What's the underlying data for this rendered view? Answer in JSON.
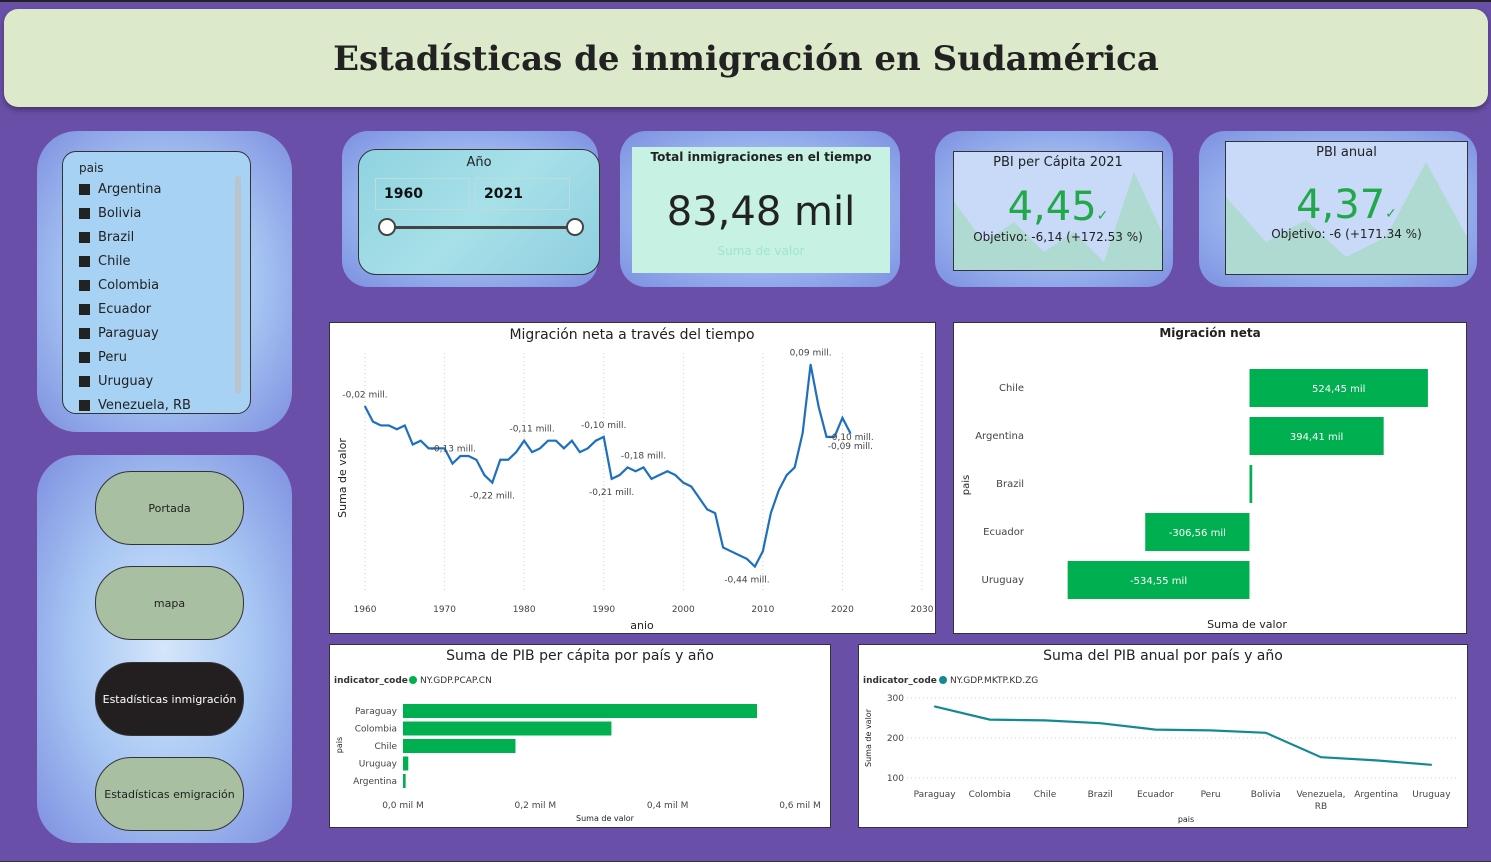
{
  "header": {
    "title": "Estadísticas de inmigración en Sudamérica"
  },
  "slicer": {
    "title": "pais",
    "items": [
      "Argentina",
      "Bolivia",
      "Brazil",
      "Chile",
      "Colombia",
      "Ecuador",
      "Paraguay",
      "Peru",
      "Uruguay",
      "Venezuela, RB"
    ]
  },
  "nav": {
    "portada": "Portada",
    "mapa": "mapa",
    "inmigracion": "Estadísticas inmigración",
    "emigracion": "Estadísticas emigración"
  },
  "year_slicer": {
    "label": "Año",
    "from": "1960",
    "to": "2021"
  },
  "kpi_total": {
    "title": "Total inmigraciones en el tiempo",
    "value": "83,48 mil",
    "subtitle": "Suma de valor"
  },
  "kpi_pbi_capita": {
    "title": "PBI per Cápita 2021",
    "value": "4,45",
    "target": "Objetivo: -6,14 (+172.53 %)"
  },
  "kpi_pbi_anual": {
    "title": "PBI anual",
    "value": "4,37",
    "target": "Objetivo: -6 (+171.34 %)"
  },
  "colors": {
    "accent_green": "#00b050",
    "line_blue": "#1f6fbf",
    "teal": "#138a93",
    "background": "#6a4fa8"
  },
  "chart_data": [
    {
      "id": "net_migration_time",
      "type": "line",
      "title": "Migración neta a través del tiempo",
      "xlabel": "anio",
      "ylabel": "Suma de valor",
      "xlim": [
        1960,
        2030
      ],
      "xticks": [
        "1960",
        "1970",
        "1980",
        "1990",
        "2000",
        "2010",
        "2020",
        "2030"
      ],
      "ylim": [
        -0.47,
        0.12
      ],
      "unit": "mill.",
      "x": [
        1960,
        1961,
        1962,
        1963,
        1964,
        1965,
        1966,
        1967,
        1968,
        1969,
        1970,
        1971,
        1972,
        1973,
        1974,
        1975,
        1976,
        1977,
        1978,
        1979,
        1980,
        1981,
        1982,
        1983,
        1984,
        1985,
        1986,
        1987,
        1988,
        1989,
        1990,
        1991,
        1992,
        1993,
        1994,
        1995,
        1996,
        1997,
        1998,
        1999,
        2000,
        2001,
        2002,
        2003,
        2004,
        2005,
        2006,
        2007,
        2008,
        2009,
        2010,
        2011,
        2012,
        2013,
        2014,
        2015,
        2016,
        2017,
        2018,
        2019,
        2020,
        2021
      ],
      "values": [
        -0.02,
        -0.06,
        -0.07,
        -0.07,
        -0.08,
        -0.07,
        -0.12,
        -0.11,
        -0.13,
        -0.13,
        -0.13,
        -0.17,
        -0.15,
        -0.15,
        -0.16,
        -0.2,
        -0.22,
        -0.16,
        -0.16,
        -0.14,
        -0.11,
        -0.14,
        -0.13,
        -0.11,
        -0.11,
        -0.13,
        -0.11,
        -0.14,
        -0.13,
        -0.11,
        -0.1,
        -0.21,
        -0.2,
        -0.18,
        -0.19,
        -0.18,
        -0.21,
        -0.2,
        -0.19,
        -0.2,
        -0.22,
        -0.23,
        -0.26,
        -0.29,
        -0.3,
        -0.39,
        -0.4,
        -0.41,
        -0.42,
        -0.44,
        -0.4,
        -0.3,
        -0.24,
        -0.2,
        -0.18,
        -0.09,
        0.09,
        -0.02,
        -0.1,
        -0.1,
        -0.05,
        -0.09
      ],
      "labels": [
        {
          "x": 1960,
          "y": -0.02,
          "text": "-0,02 mill.",
          "pos": "above"
        },
        {
          "x": 1968,
          "y": -0.13,
          "text": "-0,13 mill.",
          "pos": "right"
        },
        {
          "x": 1976,
          "y": -0.22,
          "text": "-0,22 mill.",
          "pos": "below"
        },
        {
          "x": 1981,
          "y": -0.11,
          "text": "-0,11 mill.",
          "pos": "above"
        },
        {
          "x": 1990,
          "y": -0.1,
          "text": "-0,10 mill.",
          "pos": "above"
        },
        {
          "x": 1991,
          "y": -0.21,
          "text": "-0,21 mill.",
          "pos": "below"
        },
        {
          "x": 1995,
          "y": -0.18,
          "text": "-0,18 mill.",
          "pos": "above"
        },
        {
          "x": 2008,
          "y": -0.44,
          "text": "-0,44 mill.",
          "pos": "below"
        },
        {
          "x": 2016,
          "y": 0.09,
          "text": "0,09 mill.",
          "pos": "above"
        },
        {
          "x": 2018,
          "y": -0.1,
          "text": "-0,10 mill.",
          "pos": "right"
        },
        {
          "x": 2021,
          "y": -0.09,
          "text": "-0,09 mill.",
          "pos": "below"
        }
      ]
    },
    {
      "id": "net_migration_country",
      "type": "bar",
      "orientation": "horizontal",
      "title": "Migración neta",
      "xlabel": "Suma de valor",
      "ylabel": "pais",
      "categories": [
        "Chile",
        "Argentina",
        "Brazil",
        "Ecuador",
        "Uruguay"
      ],
      "values": [
        524.45,
        394.41,
        8,
        -306.56,
        -534.55
      ],
      "value_labels": [
        "524,45 mil",
        "394,41 mil",
        "",
        "-306,56 mil",
        "-534,55 mil"
      ],
      "xlim": [
        -560,
        560
      ]
    },
    {
      "id": "gdp_per_capita",
      "type": "bar",
      "orientation": "horizontal",
      "title": "Suma de PIB per cápita por país y año",
      "legend_title": "indicator_code",
      "series": [
        {
          "name": "NY.GDP.PCAP.CN",
          "values": [
            0.535,
            0.315,
            0.17,
            0.008,
            0.004
          ]
        }
      ],
      "categories": [
        "Paraguay",
        "Colombia",
        "Chile",
        "Uruguay",
        "Argentina"
      ],
      "xlabel": "Suma de valor",
      "ylabel": "pais",
      "xlim": [
        0,
        0.6
      ],
      "xticks": [
        "0,0 mil M",
        "0,2 mil M",
        "0,4 mil M",
        "0,6 mil M"
      ]
    },
    {
      "id": "gdp_annual",
      "type": "line",
      "title": "Suma del PIB anual por país y año",
      "legend_title": "indicator_code",
      "series": [
        {
          "name": "NY.GDP.MKTP.KD.ZG",
          "values": [
            279,
            246,
            244,
            237,
            221,
            219,
            213,
            152,
            144,
            133
          ]
        }
      ],
      "categories": [
        "Paraguay",
        "Colombia",
        "Chile",
        "Brazil",
        "Ecuador",
        "Peru",
        "Bolivia",
        "Venezuela, RB",
        "Argentina",
        "Uruguay"
      ],
      "xlabel": "pais",
      "ylabel": "Suma de valor",
      "ylim": [
        100,
        300
      ],
      "yticks": [
        "300",
        "200",
        "100"
      ]
    }
  ]
}
